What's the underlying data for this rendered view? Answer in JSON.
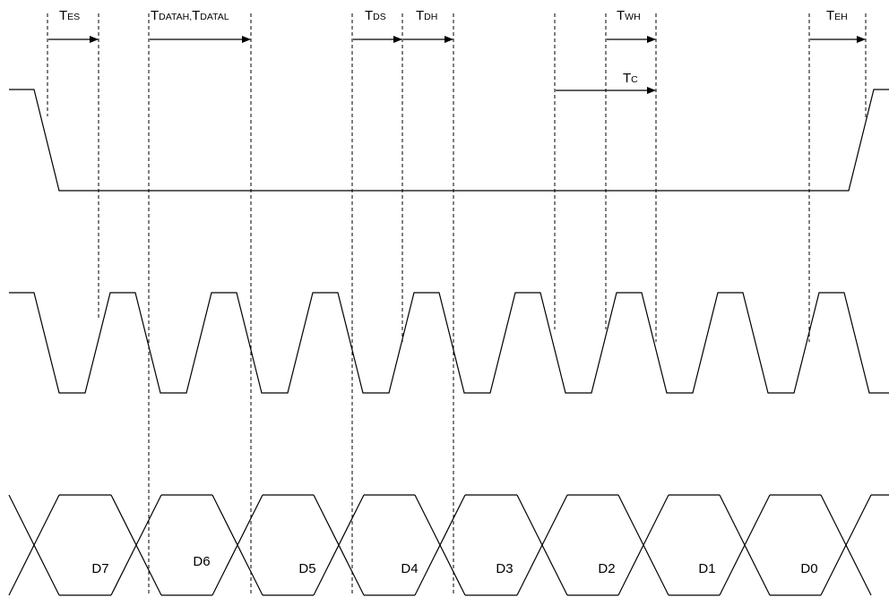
{
  "timing_labels": {
    "tes": {
      "main": "T",
      "sub": "ES"
    },
    "tdatah": {
      "main": "T",
      "sub": "DATAH,"
    },
    "tdatal": {
      "main": "T",
      "sub": "DATAL"
    },
    "tds": {
      "main": "T",
      "sub": "DS"
    },
    "tdh": {
      "main": "T",
      "sub": "DH"
    },
    "twh": {
      "main": "T",
      "sub": "WH"
    },
    "tc": {
      "main": "T",
      "sub": "C"
    },
    "teh": {
      "main": "T",
      "sub": "EH"
    }
  },
  "data_bits": [
    "D7",
    "D6",
    "D5",
    "D4",
    "D3",
    "D2",
    "D1",
    "D0"
  ],
  "colors": {
    "line": "#000000",
    "background": "#ffffff"
  }
}
